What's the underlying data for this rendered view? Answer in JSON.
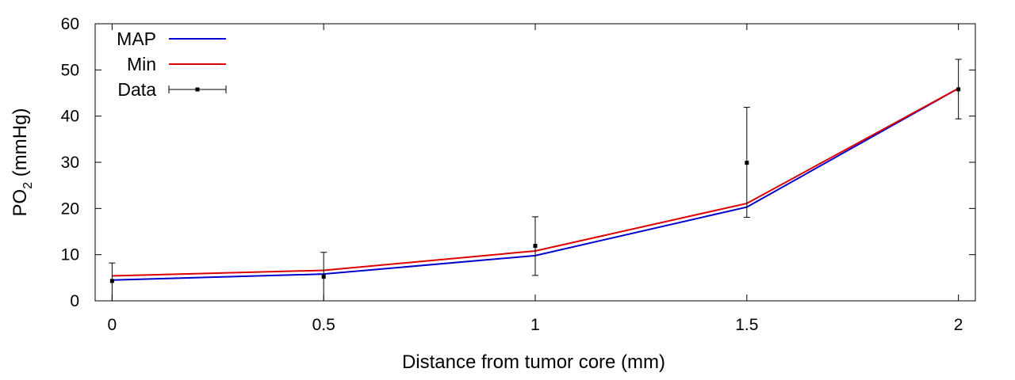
{
  "chart_data": {
    "type": "line",
    "xlabel": "Distance from tumor core (mm)",
    "ylabel": {
      "main": "PO",
      "sub": "2",
      "rest": " (mmHg)"
    },
    "xlim": [
      -0.04,
      2.04
    ],
    "ylim": [
      0,
      60
    ],
    "xticks": [
      {
        "v": 0,
        "label": "0"
      },
      {
        "v": 0.5,
        "label": "0.5"
      },
      {
        "v": 1,
        "label": "1"
      },
      {
        "v": 1.5,
        "label": "1.5"
      },
      {
        "v": 2,
        "label": "2"
      }
    ],
    "yticks": [
      {
        "v": 0,
        "label": "0"
      },
      {
        "v": 10,
        "label": "10"
      },
      {
        "v": 20,
        "label": "20"
      },
      {
        "v": 30,
        "label": "30"
      },
      {
        "v": 40,
        "label": "40"
      },
      {
        "v": 50,
        "label": "50"
      },
      {
        "v": 60,
        "label": "60"
      }
    ],
    "grid": false,
    "legend_position": "top-left",
    "series": [
      {
        "name": "MAP",
        "kind": "line",
        "color": "#0000cc",
        "x": [
          0,
          0.5,
          1,
          1.5,
          2
        ],
        "y": [
          4.5,
          5.8,
          9.8,
          20.3,
          46
        ]
      },
      {
        "name": "Min",
        "kind": "line",
        "color": "#dd0000",
        "x": [
          0,
          0.5,
          1,
          1.5,
          2
        ],
        "y": [
          5.4,
          6.6,
          10.8,
          21.1,
          46
        ]
      },
      {
        "name": "Data",
        "kind": "errorbar",
        "color": "#000000",
        "x": [
          0,
          0.5,
          1,
          1.5,
          2
        ],
        "y": [
          4.3,
          5.2,
          11.9,
          29.9,
          45.8
        ],
        "ylow": [
          0,
          0,
          5.5,
          18.1,
          39.4
        ],
        "yhigh": [
          8.2,
          10.5,
          18.2,
          41.9,
          52.3
        ]
      }
    ]
  }
}
